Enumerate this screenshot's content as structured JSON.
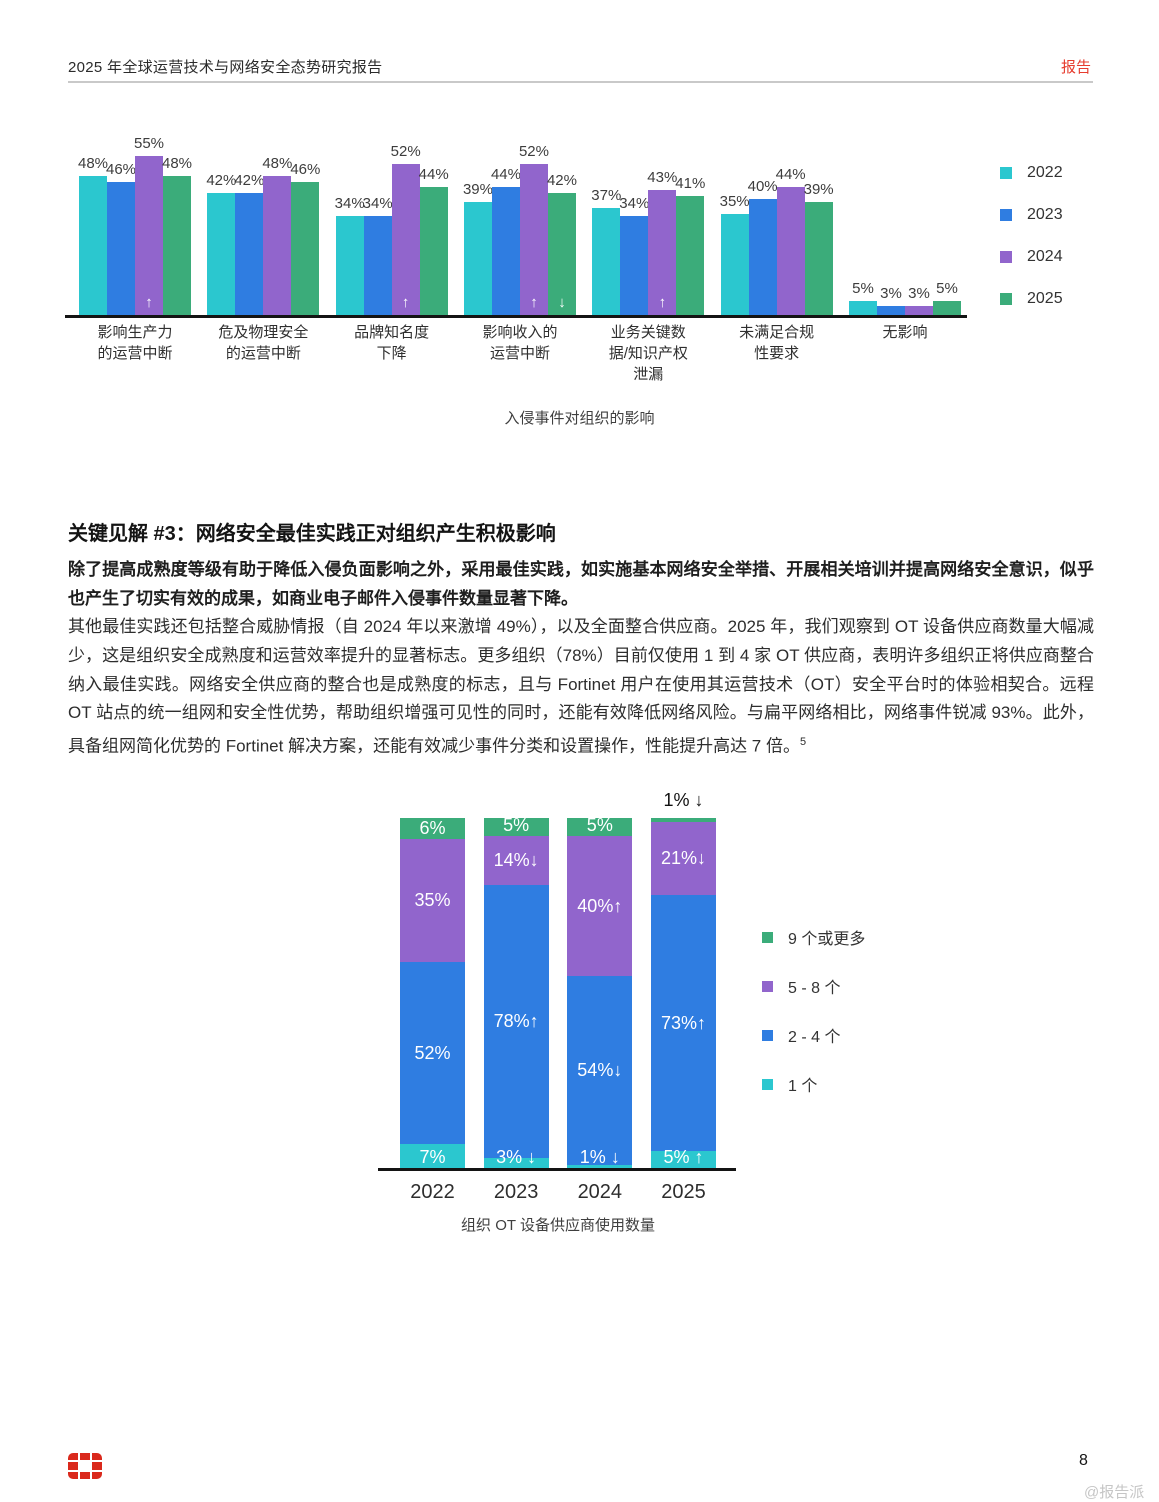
{
  "header": {
    "title": "2025 年全球运营技术与网络安全态势研究报告",
    "badge": "报告"
  },
  "colors": {
    "teal": "#2bc7cf",
    "blue": "#2f7de1",
    "purple": "#9165cc",
    "green": "#3bac7a",
    "red": "#da291c"
  },
  "chart_data": [
    {
      "type": "bar",
      "title": "入侵事件对组织的影响",
      "ylabel": "",
      "xlabel": "",
      "ylim": [
        0,
        60
      ],
      "grid": false,
      "legend_position": "right",
      "categories": [
        "影响生产力\n的运营中断",
        "危及物理安全\n的运营中断",
        "品牌知名度\n下降",
        "影响收入的\n运营中断",
        "业务关键数\n据/知识产权\n泄漏",
        "未满足合规\n性要求",
        "无影响"
      ],
      "series": [
        {
          "name": "2022",
          "color_key": "teal",
          "values": [
            48,
            42,
            34,
            39,
            37,
            35,
            5
          ],
          "arrows": [
            null,
            null,
            null,
            null,
            null,
            null,
            null
          ]
        },
        {
          "name": "2023",
          "color_key": "blue",
          "values": [
            46,
            42,
            34,
            44,
            34,
            40,
            3
          ],
          "arrows": [
            null,
            null,
            null,
            null,
            null,
            null,
            null
          ]
        },
        {
          "name": "2024",
          "color_key": "purple",
          "values": [
            55,
            48,
            52,
            52,
            43,
            44,
            3
          ],
          "arrows": [
            "up",
            null,
            "up",
            "up",
            "up",
            null,
            null
          ]
        },
        {
          "name": "2025",
          "color_key": "green",
          "values": [
            48,
            46,
            44,
            42,
            41,
            39,
            5
          ],
          "arrows": [
            null,
            null,
            null,
            "down",
            null,
            null,
            null
          ]
        }
      ]
    },
    {
      "type": "stacked-bar",
      "title": "组织 OT 设备供应商使用数量",
      "ylim": [
        0,
        100
      ],
      "grid": false,
      "legend_position": "right",
      "categories": [
        "2022",
        "2023",
        "2024",
        "2025"
      ],
      "legend": [
        {
          "label": "9 个或更多",
          "color_key": "green"
        },
        {
          "label": "5 - 8 个",
          "color_key": "purple"
        },
        {
          "label": "2 - 4 个",
          "color_key": "blue"
        },
        {
          "label": "1 个",
          "color_key": "teal"
        }
      ],
      "series": [
        {
          "name": "1 个",
          "color_key": "teal",
          "values": [
            7,
            3,
            1,
            5
          ],
          "arrows": [
            null,
            "down",
            "down",
            "up"
          ],
          "label_outside": [
            false,
            false,
            false,
            false
          ]
        },
        {
          "name": "2 - 4 个",
          "color_key": "blue",
          "values": [
            52,
            78,
            54,
            73
          ],
          "arrows": [
            null,
            "up",
            "down",
            "up"
          ],
          "label_outside": [
            false,
            false,
            false,
            false
          ]
        },
        {
          "name": "5 - 8 个",
          "color_key": "purple",
          "values": [
            35,
            14,
            40,
            21
          ],
          "arrows": [
            null,
            "down",
            "up",
            "down"
          ],
          "label_outside": [
            false,
            false,
            false,
            false
          ]
        },
        {
          "name": "9 个或更多",
          "color_key": "green",
          "values": [
            6,
            5,
            5,
            1
          ],
          "arrows": [
            null,
            null,
            null,
            "down"
          ],
          "label_outside": [
            false,
            false,
            false,
            true
          ]
        }
      ]
    }
  ],
  "section": {
    "heading": "关键见解 #3：网络安全最佳实践正对组织产生积极影响",
    "para1": "除了提高成熟度等级有助于降低入侵负面影响之外，采用最佳实践，如实施基本网络安全举措、开展相关培训并提高网络安全意识，似乎也产生了切实有效的成果，如商业电子邮件入侵事件数量显著下降。",
    "para2": "其他最佳实践还包括整合威胁情报（自 2024 年以来激增 49%），以及全面整合供应商。2025 年，我们观察到 OT 设备供应商数量大幅减少，这是组织安全成熟度和运营效率提升的显著标志。更多组织（78%）目前仅使用 1 到 4 家 OT 供应商，表明许多组织正将供应商整合纳入最佳实践。网络安全供应商的整合也是成熟度的标志，且与 Fortinet 用户在使用其运营技术（OT）安全平台时的体验相契合。远程 OT 站点的统一组网和安全性优势，帮助组织增强可见性的同时，还能有效降低网络风险。与扁平网络相比，网络事件锐减 93%。此外，具备组网简化优势的 Fortinet 解决方案，还能有效减少事件分类和设置操作，性能提升高达 7 倍。",
    "footnote_ref": "5"
  },
  "footer": {
    "page_number": "8",
    "watermark": "@报告派"
  }
}
